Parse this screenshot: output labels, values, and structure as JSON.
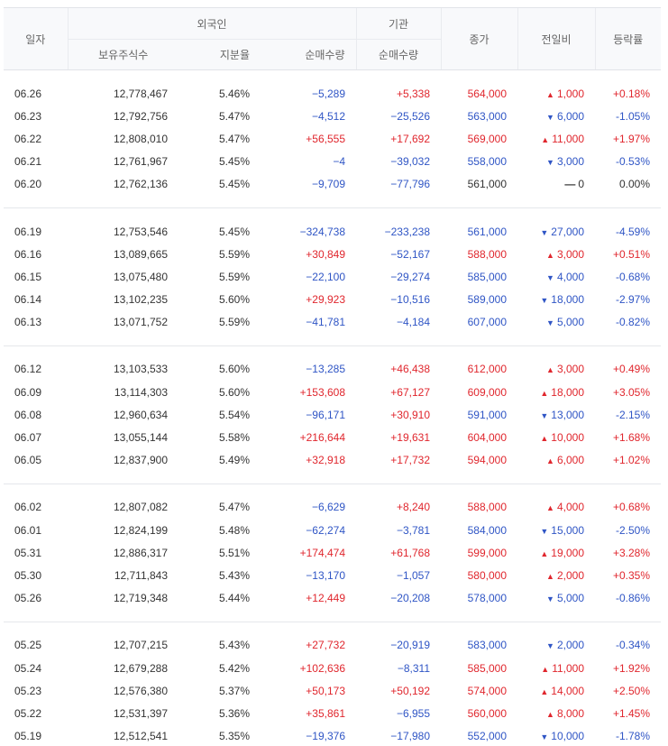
{
  "header": {
    "date": "일자",
    "foreign": "외국인",
    "institution": "기관",
    "holdings": "보유주식수",
    "ratio": "지분율",
    "net_foreign": "순매수량",
    "net_institution": "순매수량",
    "close": "종가",
    "change": "전일비",
    "rate": "등락률"
  },
  "colors": {
    "up": "#e0262d",
    "down": "#2f55c5",
    "flat": "#333333"
  },
  "groups": [
    [
      {
        "date": "06.26",
        "holdings": "12,778,467",
        "ratio": "5.46%",
        "foreign": "−5,289",
        "inst": "+5,338",
        "close": "564,000",
        "change": "1,000",
        "dir": "up",
        "rate": "+0.18%"
      },
      {
        "date": "06.23",
        "holdings": "12,792,756",
        "ratio": "5.47%",
        "foreign": "−4,512",
        "inst": "−25,526",
        "close": "563,000",
        "change": "6,000",
        "dir": "down",
        "rate": "-1.05%"
      },
      {
        "date": "06.22",
        "holdings": "12,808,010",
        "ratio": "5.47%",
        "foreign": "+56,555",
        "inst": "+17,692",
        "close": "569,000",
        "change": "11,000",
        "dir": "up",
        "rate": "+1.97%"
      },
      {
        "date": "06.21",
        "holdings": "12,761,967",
        "ratio": "5.45%",
        "foreign": "−4",
        "inst": "−39,032",
        "close": "558,000",
        "change": "3,000",
        "dir": "down",
        "rate": "-0.53%"
      },
      {
        "date": "06.20",
        "holdings": "12,762,136",
        "ratio": "5.45%",
        "foreign": "−9,709",
        "inst": "−77,796",
        "close": "561,000",
        "change": "0",
        "dir": "flat",
        "rate": "0.00%"
      }
    ],
    [
      {
        "date": "06.19",
        "holdings": "12,753,546",
        "ratio": "5.45%",
        "foreign": "−324,738",
        "inst": "−233,238",
        "close": "561,000",
        "change": "27,000",
        "dir": "down",
        "rate": "-4.59%"
      },
      {
        "date": "06.16",
        "holdings": "13,089,665",
        "ratio": "5.59%",
        "foreign": "+30,849",
        "inst": "−52,167",
        "close": "588,000",
        "change": "3,000",
        "dir": "up",
        "rate": "+0.51%"
      },
      {
        "date": "06.15",
        "holdings": "13,075,480",
        "ratio": "5.59%",
        "foreign": "−22,100",
        "inst": "−29,274",
        "close": "585,000",
        "change": "4,000",
        "dir": "down",
        "rate": "-0.68%"
      },
      {
        "date": "06.14",
        "holdings": "13,102,235",
        "ratio": "5.60%",
        "foreign": "+29,923",
        "inst": "−10,516",
        "close": "589,000",
        "change": "18,000",
        "dir": "down",
        "rate": "-2.97%"
      },
      {
        "date": "06.13",
        "holdings": "13,071,752",
        "ratio": "5.59%",
        "foreign": "−41,781",
        "inst": "−4,184",
        "close": "607,000",
        "change": "5,000",
        "dir": "down",
        "rate": "-0.82%"
      }
    ],
    [
      {
        "date": "06.12",
        "holdings": "13,103,533",
        "ratio": "5.60%",
        "foreign": "−13,285",
        "inst": "+46,438",
        "close": "612,000",
        "change": "3,000",
        "dir": "up",
        "rate": "+0.49%"
      },
      {
        "date": "06.09",
        "holdings": "13,114,303",
        "ratio": "5.60%",
        "foreign": "+153,608",
        "inst": "+67,127",
        "close": "609,000",
        "change": "18,000",
        "dir": "up",
        "rate": "+3.05%"
      },
      {
        "date": "06.08",
        "holdings": "12,960,634",
        "ratio": "5.54%",
        "foreign": "−96,171",
        "inst": "+30,910",
        "close": "591,000",
        "change": "13,000",
        "dir": "down",
        "rate": "-2.15%"
      },
      {
        "date": "06.07",
        "holdings": "13,055,144",
        "ratio": "5.58%",
        "foreign": "+216,644",
        "inst": "+19,631",
        "close": "604,000",
        "change": "10,000",
        "dir": "up",
        "rate": "+1.68%"
      },
      {
        "date": "06.05",
        "holdings": "12,837,900",
        "ratio": "5.49%",
        "foreign": "+32,918",
        "inst": "+17,732",
        "close": "594,000",
        "change": "6,000",
        "dir": "up",
        "rate": "+1.02%"
      }
    ],
    [
      {
        "date": "06.02",
        "holdings": "12,807,082",
        "ratio": "5.47%",
        "foreign": "−6,629",
        "inst": "+8,240",
        "close": "588,000",
        "change": "4,000",
        "dir": "up",
        "rate": "+0.68%"
      },
      {
        "date": "06.01",
        "holdings": "12,824,199",
        "ratio": "5.48%",
        "foreign": "−62,274",
        "inst": "−3,781",
        "close": "584,000",
        "change": "15,000",
        "dir": "down",
        "rate": "-2.50%"
      },
      {
        "date": "05.31",
        "holdings": "12,886,317",
        "ratio": "5.51%",
        "foreign": "+174,474",
        "inst": "+61,768",
        "close": "599,000",
        "change": "19,000",
        "dir": "up",
        "rate": "+3.28%"
      },
      {
        "date": "05.30",
        "holdings": "12,711,843",
        "ratio": "5.43%",
        "foreign": "−13,170",
        "inst": "−1,057",
        "close": "580,000",
        "change": "2,000",
        "dir": "up",
        "rate": "+0.35%"
      },
      {
        "date": "05.26",
        "holdings": "12,719,348",
        "ratio": "5.44%",
        "foreign": "+12,449",
        "inst": "−20,208",
        "close": "578,000",
        "change": "5,000",
        "dir": "down",
        "rate": "-0.86%"
      }
    ],
    [
      {
        "date": "05.25",
        "holdings": "12,707,215",
        "ratio": "5.43%",
        "foreign": "+27,732",
        "inst": "−20,919",
        "close": "583,000",
        "change": "2,000",
        "dir": "down",
        "rate": "-0.34%"
      },
      {
        "date": "05.24",
        "holdings": "12,679,288",
        "ratio": "5.42%",
        "foreign": "+102,636",
        "inst": "−8,311",
        "close": "585,000",
        "change": "11,000",
        "dir": "up",
        "rate": "+1.92%"
      },
      {
        "date": "05.23",
        "holdings": "12,576,380",
        "ratio": "5.37%",
        "foreign": "+50,173",
        "inst": "+50,192",
        "close": "574,000",
        "change": "14,000",
        "dir": "up",
        "rate": "+2.50%"
      },
      {
        "date": "05.22",
        "holdings": "12,531,397",
        "ratio": "5.36%",
        "foreign": "+35,861",
        "inst": "−6,955",
        "close": "560,000",
        "change": "8,000",
        "dir": "up",
        "rate": "+1.45%"
      },
      {
        "date": "05.19",
        "holdings": "12,512,541",
        "ratio": "5.35%",
        "foreign": "−19,376",
        "inst": "−17,980",
        "close": "552,000",
        "change": "10,000",
        "dir": "down",
        "rate": "-1.78%"
      }
    ]
  ]
}
